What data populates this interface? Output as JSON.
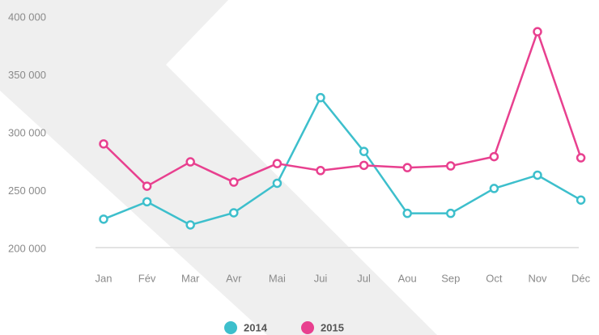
{
  "chart_data": {
    "type": "line",
    "categories": [
      "Jan",
      "Fév",
      "Mar",
      "Avr",
      "Mai",
      "Jui",
      "Jul",
      "Aou",
      "Sep",
      "Oct",
      "Nov",
      "Déc"
    ],
    "series": [
      {
        "name": "2014",
        "color": "#3dbfcc",
        "values": [
          226000,
          241000,
          221000,
          231500,
          257000,
          331000,
          284500,
          231000,
          231000,
          252500,
          264000,
          242500
        ]
      },
      {
        "name": "2015",
        "color": "#e8408f",
        "values": [
          291000,
          254500,
          275500,
          258000,
          274000,
          268000,
          272500,
          270500,
          272000,
          280000,
          388000,
          279000
        ]
      }
    ],
    "ylim": [
      200000,
      400000
    ],
    "yticks": [
      {
        "value": 200000,
        "label": "200 000"
      },
      {
        "value": 250000,
        "label": "250 000"
      },
      {
        "value": 300000,
        "label": "300 000"
      },
      {
        "value": 350000,
        "label": "350 000"
      },
      {
        "value": 400000,
        "label": "400 000"
      }
    ],
    "grid": false
  }
}
